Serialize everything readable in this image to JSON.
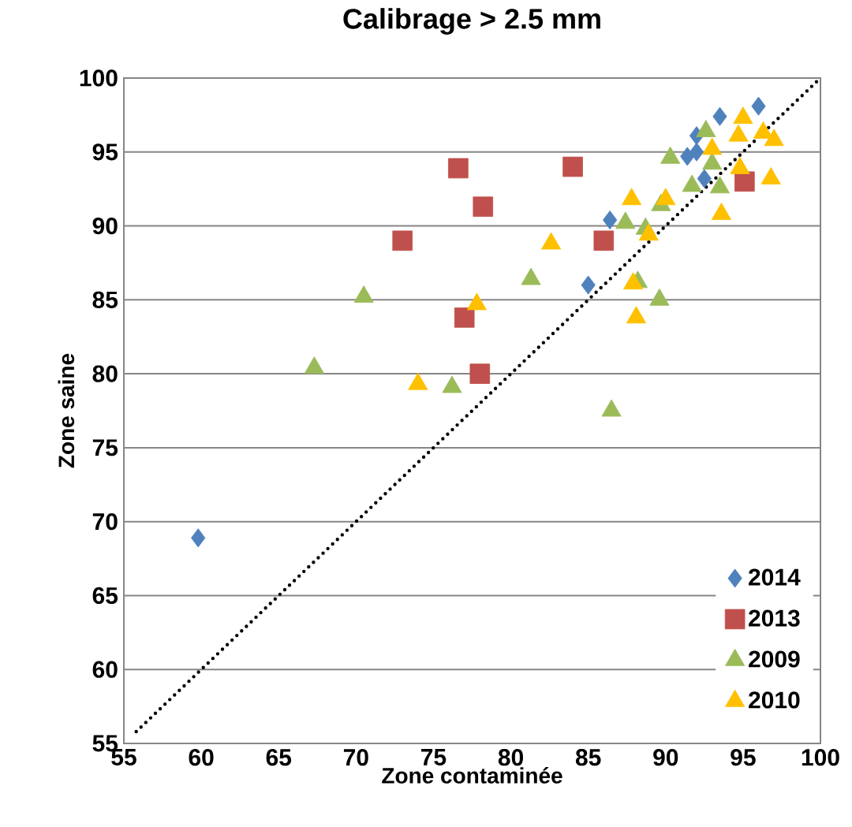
{
  "chart_data": {
    "type": "scatter",
    "title": "Calibrage > 2.5 mm",
    "xlabel": "Zone contaminée",
    "ylabel": "Zone saine",
    "xlim": [
      55,
      100
    ],
    "ylim": [
      55,
      100
    ],
    "xticks": [
      55,
      60,
      65,
      70,
      75,
      80,
      85,
      90,
      95,
      100
    ],
    "yticks": [
      55,
      60,
      65,
      70,
      75,
      80,
      85,
      90,
      95,
      100
    ],
    "grid": "y",
    "legend": "bottom right",
    "series": [
      {
        "name": "2014",
        "color": "#4f81bd",
        "marker": "diamond",
        "x": [
          59.8,
          85.0,
          86.4,
          92.5,
          91.4,
          92.0,
          92.0,
          93.5,
          96.0
        ],
        "values": [
          68.9,
          86.0,
          90.4,
          93.2,
          94.7,
          95.0,
          96.1,
          97.4,
          98.1
        ]
      },
      {
        "name": "2013",
        "color": "#c0504d",
        "marker": "square",
        "x": [
          76.6,
          84.0,
          78.2,
          73.0,
          86.0,
          77.0,
          78.0,
          95.1
        ],
        "values": [
          93.9,
          94.0,
          91.3,
          89.0,
          89.0,
          83.8,
          80.0,
          93.0
        ]
      },
      {
        "name": "2009",
        "color": "#9bbb59",
        "marker": "triangle",
        "x": [
          67.3,
          70.5,
          76.2,
          81.3,
          86.5,
          87.4,
          88.2,
          88.7,
          89.6,
          89.7,
          90.3,
          91.7,
          92.6,
          93.0,
          93.5
        ],
        "values": [
          80.4,
          85.2,
          79.1,
          86.4,
          77.5,
          90.2,
          86.2,
          89.8,
          85.0,
          91.4,
          94.6,
          92.7,
          96.4,
          94.2,
          92.6
        ]
      },
      {
        "name": "2010",
        "color": "#ffc000",
        "marker": "triangle",
        "x": [
          74.0,
          77.8,
          82.6,
          87.8,
          87.9,
          88.1,
          88.9,
          90.0,
          93.6,
          93.0,
          94.7,
          94.8,
          95.0,
          96.3,
          97.0,
          96.8
        ],
        "values": [
          79.3,
          84.7,
          88.8,
          91.8,
          86.1,
          83.8,
          89.4,
          91.8,
          90.8,
          95.2,
          96.1,
          93.9,
          97.3,
          96.3,
          95.8,
          93.2
        ]
      },
      {
        "type": "line",
        "color": "#000000",
        "line_style": "dotted",
        "marker": "none",
        "x": [
          55.8,
          100
        ],
        "values": [
          55.8,
          100
        ]
      }
    ]
  }
}
